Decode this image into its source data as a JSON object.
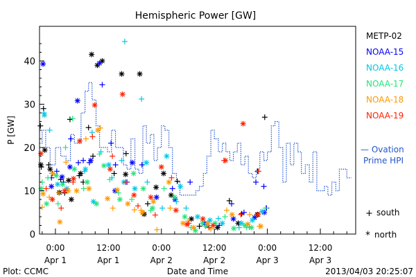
{
  "chart_data": {
    "type": "scatter",
    "title": "Hemispheric Power [GW]",
    "ylabel": "P [GW]",
    "xlabel": "Date and Time",
    "ylim": [
      0,
      48
    ],
    "yticks": [
      0,
      10,
      20,
      30,
      40
    ],
    "xlim": [
      -3.6,
      68
    ],
    "xticks": [
      {
        "x": 0,
        "time": "0:00",
        "date": "Apr 1"
      },
      {
        "x": 12,
        "time": "12:00",
        "date": "Apr 1"
      },
      {
        "x": 24,
        "time": "0:00",
        "date": "Apr 2"
      },
      {
        "x": 36,
        "time": "12:00",
        "date": "Apr 2"
      },
      {
        "x": 48,
        "time": "0:00",
        "date": "Apr 3"
      },
      {
        "x": 60,
        "time": "12:00",
        "date": "Apr 3"
      }
    ],
    "x_units": "hours since 2013-04-01 00:00 UT",
    "series": [
      {
        "name": "METP-02",
        "color": "#000000",
        "marker": "plus",
        "x": [
          -3.4,
          -3.2,
          -2.7,
          -1.5,
          -0.7,
          1.2,
          2.1,
          3.3,
          5.4,
          6.3,
          7.5,
          8.5,
          13.3,
          16.0,
          20.9,
          27.6,
          32.6,
          39.4,
          42.2,
          45.8,
          47.4
        ],
        "y": [
          25.0,
          15.5,
          29.0,
          16.0,
          14.0,
          12.6,
          9.5,
          26.5,
          13.5,
          12.0,
          24.6,
          18.0,
          14.0,
          18.6,
          7.0,
          12.2,
          1.8,
          7.7,
          4.7,
          14.5,
          27.0
        ]
      },
      {
        "name": "METP-02",
        "color": "#000000",
        "marker": "star",
        "x": [
          -3.3,
          -2.4,
          -1.2,
          0.9,
          3.0,
          3.6,
          5.7,
          8.2,
          9.5,
          10.6,
          15.0,
          15.9,
          19.1,
          20.1,
          22.8,
          24.5,
          26.2,
          30.8,
          34.3,
          36.7,
          41.4,
          45.7
        ],
        "y": [
          16.0,
          19.4,
          15.0,
          9.6,
          12.4,
          8.0,
          14.0,
          41.5,
          39.0,
          40.0,
          37.0,
          13.8,
          37.0,
          4.6,
          10.8,
          14.0,
          9.0,
          3.5,
          2.0,
          1.5,
          2.5,
          4.5
        ]
      },
      {
        "name": "NOAA-15",
        "color": "#0000ff",
        "marker": "plus",
        "x": [
          -0.9,
          0.3,
          1.8,
          3.5,
          5.2,
          6.3,
          7.7,
          10.6,
          12.6,
          13.6,
          16.2,
          19.6,
          26.5,
          30.5,
          37.1,
          39.9,
          42.7,
          45.4,
          47.2,
          47.8
        ],
        "y": [
          13.0,
          14.5,
          12.0,
          22.0,
          16.5,
          17.0,
          16.5,
          34.5,
          21.0,
          16.0,
          12.0,
          16.0,
          10.5,
          12.0,
          2.0,
          7.0,
          5.0,
          12.0,
          11.0,
          6.0
        ]
      },
      {
        "name": "NOAA-15",
        "color": "#0000ff",
        "marker": "star",
        "x": [
          -2.8,
          -0.9,
          1.5,
          3.3,
          5.0,
          8.0,
          10.0,
          13.5,
          17.4,
          22.9,
          27.1,
          33.8,
          40.3,
          45.1,
          47.3
        ],
        "y": [
          39.3,
          11.0,
          13.2,
          15.5,
          30.8,
          17.0,
          39.5,
          10.0,
          16.5,
          8.5,
          8.0,
          2.5,
          3.5,
          3.8,
          5.0
        ]
      },
      {
        "name": "NOAA-16",
        "color": "#00c8e6",
        "marker": "plus",
        "x": [
          -2.6,
          -1.3,
          6.6,
          8.3,
          10.3,
          12.8,
          15.0,
          15.7,
          19.5,
          20.8,
          24.2,
          27.4,
          29.6,
          34.4,
          36.9,
          41.6,
          43.9
        ],
        "y": [
          28.0,
          24.0,
          14.5,
          23.5,
          19.0,
          13.0,
          17.0,
          44.5,
          31.2,
          12.0,
          6.0,
          7.5,
          6.0,
          2.0,
          3.6,
          1.5,
          1.6
        ]
      },
      {
        "name": "NOAA-16",
        "color": "#00c8e6",
        "marker": "star",
        "x": [
          -2.5,
          0.5,
          2.6,
          6.8,
          8.6,
          12.1,
          15.5,
          18.0,
          20.6,
          25.2,
          28.3,
          32.2,
          35.0,
          37.8,
          42.1,
          44.6,
          46.8
        ],
        "y": [
          27.5,
          11.5,
          10.5,
          15.0,
          7.5,
          16.0,
          12.0,
          10.5,
          16.5,
          18.0,
          11.0,
          4.0,
          3.2,
          2.5,
          2.5,
          3.2,
          5.2
        ]
      },
      {
        "name": "NOAA-17",
        "color": "#22e67a",
        "marker": "plus",
        "x": [
          -3.0,
          -1.7,
          0.6,
          2.3,
          3.9,
          6.4,
          10.0,
          12.3,
          14.3,
          17.3,
          21.6,
          24.6,
          30.7,
          34.0,
          38.4,
          43.3,
          47.6
        ],
        "y": [
          12.0,
          13.0,
          7.0,
          20.0,
          26.7,
          10.5,
          18.5,
          12.6,
          9.5,
          8.0,
          5.5,
          10.5,
          1.5,
          1.8,
          4.0,
          1.5,
          6.0
        ]
      },
      {
        "name": "NOAA-17",
        "color": "#22e67a",
        "marker": "star",
        "x": [
          -3.2,
          -2.0,
          0.2,
          1.6,
          4.3,
          7.2,
          9.3,
          11.0,
          14.6,
          17.7,
          19.9,
          22.0,
          27.0,
          29.3,
          31.7,
          33.3,
          36.2,
          40.4,
          42.9,
          44.4
        ],
        "y": [
          10.5,
          7.0,
          13.5,
          11.5,
          15.0,
          12.0,
          7.0,
          15.8,
          8.0,
          14.0,
          10.5,
          6.0,
          8.5,
          4.0,
          0.8,
          2.5,
          2.5,
          1.3,
          2.0,
          1.5
        ]
      },
      {
        "name": "NOAA-18",
        "color": "#ff9900",
        "marker": "plus",
        "x": [
          -3.0,
          -1.4,
          0.8,
          2.4,
          6.9,
          10.2,
          13.0,
          17.9,
          19.4,
          23.0,
          26.0,
          30.0,
          35.2,
          38.8,
          44.0,
          46.2
        ],
        "y": [
          6.2,
          8.5,
          9.5,
          16.6,
          22.0,
          24.5,
          6.0,
          5.6,
          5.5,
          1.0,
          6.0,
          3.0,
          1.2,
          5.5,
          4.5,
          1.8
        ]
      },
      {
        "name": "NOAA-18",
        "color": "#ff9900",
        "marker": "star",
        "x": [
          -2.8,
          -0.6,
          1.0,
          2.9,
          4.8,
          7.6,
          9.6,
          11.8,
          14.0,
          16.4,
          19.7,
          22.2,
          25.7,
          28.9,
          31.3,
          34.5,
          40.0,
          43.6,
          46.5
        ],
        "y": [
          9.3,
          14.0,
          2.8,
          10.0,
          10.0,
          10.5,
          24.0,
          8.2,
          10.2,
          7.0,
          5.0,
          7.5,
          12.0,
          2.5,
          1.5,
          2.5,
          4.5,
          2.3,
          1.8
        ]
      },
      {
        "name": "NOAA-19",
        "color": "#ff2200",
        "marker": "plus",
        "x": [
          -2.1,
          1.3,
          4.0,
          8.4,
          12.9,
          15.9,
          18.7,
          22.6,
          26.3,
          30.2,
          34.8,
          38.2,
          42.0,
          46.0
        ],
        "y": [
          10.5,
          6.0,
          12.0,
          22.5,
          18.0,
          12.0,
          6.5,
          4.4,
          13.0,
          2.5,
          1.5,
          17.0,
          4.5,
          14.5
        ]
      },
      {
        "name": "NOAA-19",
        "color": "#ff2200",
        "marker": "star",
        "x": [
          -3.3,
          -0.7,
          2.1,
          4.1,
          5.5,
          8.9,
          12.4,
          15.2,
          17.8,
          21.6,
          24.0,
          27.3,
          29.8,
          33.4,
          35.7,
          38.5,
          42.5,
          45.9
        ],
        "y": [
          18.6,
          8.0,
          10.0,
          12.8,
          21.5,
          29.8,
          15.0,
          32.3,
          9.0,
          8.5,
          15.5,
          5.5,
          2.2,
          3.5,
          2.0,
          17.0,
          25.5,
          4.5
        ]
      }
    ],
    "ovation": {
      "name": "Ovation Prime HPI",
      "color": "#2255cc",
      "style": "dotted-step",
      "x": [
        -3.6,
        -3.0,
        -2.2,
        -1.2,
        0.0,
        1.2,
        2.4,
        3.4,
        4.3,
        5.0,
        5.8,
        6.7,
        7.5,
        8.3,
        9.2,
        10.0,
        10.9,
        11.8,
        12.7,
        13.6,
        14.5,
        15.4,
        16.2,
        17.1,
        18.0,
        18.9,
        19.8,
        20.6,
        21.5,
        22.3,
        23.1,
        24.0,
        24.8,
        25.7,
        26.5,
        27.4,
        28.2,
        29.1,
        30.0,
        30.9,
        31.8,
        32.6,
        33.5,
        34.3,
        35.2,
        36.0,
        36.9,
        37.8,
        38.6,
        39.5,
        40.3,
        41.2,
        42.0,
        42.9,
        43.7,
        44.6,
        45.5,
        46.3,
        47.2,
        48.0,
        48.9,
        49.7,
        50.6,
        51.5,
        52.3,
        53.2,
        54.0,
        54.9,
        55.7,
        56.6,
        57.5,
        58.3,
        59.2,
        60.0,
        60.9,
        61.7,
        62.6,
        63.5,
        64.3,
        65.2,
        66.0,
        67.0
      ],
      "y": [
        21,
        24,
        20,
        16,
        20,
        18,
        17,
        23,
        21,
        21,
        28,
        33,
        35,
        31,
        25,
        20,
        20,
        19,
        24,
        20,
        20,
        16,
        15,
        22,
        15,
        14,
        25,
        21,
        23,
        17,
        20,
        25,
        24,
        20,
        14,
        12,
        9,
        9,
        9,
        9,
        10,
        11,
        14,
        18,
        24,
        22,
        19,
        21,
        19,
        17,
        19,
        21,
        16,
        18,
        14,
        13,
        15,
        19,
        17,
        19,
        25,
        26,
        20,
        12,
        21,
        16,
        21,
        19,
        14,
        16,
        12,
        19,
        10,
        10,
        11,
        9,
        12,
        10,
        15,
        15,
        13,
        10
      ]
    }
  },
  "legend": {
    "entries": [
      {
        "label": "METP-02",
        "color": "#000000"
      },
      {
        "label": "NOAA-15",
        "color": "#0000ff"
      },
      {
        "label": "NOAA-16",
        "color": "#00c8e6"
      },
      {
        "label": "NOAA-17",
        "color": "#22e67a"
      },
      {
        "label": "NOAA-18",
        "color": "#ff9900"
      },
      {
        "label": "NOAA-19",
        "color": "#ff2200"
      }
    ],
    "ovation_line1": "— Ovation",
    "ovation_line2": "Prime HPI",
    "marker_south_symbol": "+",
    "marker_south_label": "south",
    "marker_north_symbol": "*",
    "marker_north_label": "north"
  },
  "footer": {
    "plot_credit": "Plot: CCMC",
    "timestamp": "2013/04/03 20:25:07"
  }
}
